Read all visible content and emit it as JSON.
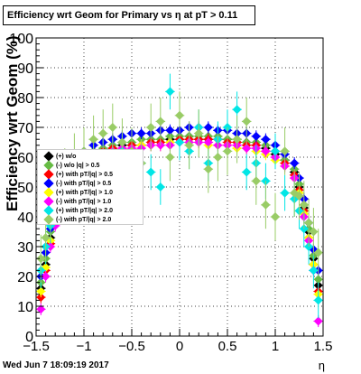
{
  "title": "Efficiency wrt Geom for Primary vs   η at pT > 0.11",
  "ylabel": "Efficiency wrt Geom (%)",
  "xlabel": "η",
  "datestamp": "Wed Jun  7 18:09:19 2017",
  "legend": [
    {
      "label": "(+) w/o",
      "color": "#000000"
    },
    {
      "label": "(-) w/o |q| > 0.5",
      "color": "#66bb44"
    },
    {
      "label": "(+) with pT/|q| > 0.5",
      "color": "#ff0000"
    },
    {
      "label": "(-) with pT/|q| > 0.5",
      "color": "#0000ff"
    },
    {
      "label": "(+) with pT/|q| > 1.0",
      "color": "#ffff00"
    },
    {
      "label": "(-) with pT/|q| > 1.0",
      "color": "#ff00ff"
    },
    {
      "label": "(+) with pT/|q| > 2.0",
      "color": "#00e6e6"
    },
    {
      "label": "(-) with pT/|q| > 2.0",
      "color": "#99cc66"
    }
  ],
  "chart_data": {
    "type": "scatter",
    "title": "Efficiency wrt Geom for Primary vs   η at pT > 0.11",
    "xlabel": "η",
    "ylabel": "Efficiency wrt Geom (%)",
    "xlim": [
      -1.5,
      1.5
    ],
    "ylim": [
      0,
      100
    ],
    "xticks": [
      -1.5,
      -1,
      -0.5,
      0,
      0.5,
      1,
      1.5
    ],
    "xtick_labels": [
      "−1.5",
      "−1",
      "−0.5",
      "0",
      "0.5",
      "1",
      "1.5"
    ],
    "yticks": [
      0,
      10,
      20,
      30,
      40,
      50,
      60,
      70,
      80,
      90,
      100
    ],
    "grid": true,
    "legend_position": "left",
    "x": [
      -1.45,
      -1.4,
      -1.35,
      -1.3,
      -1.25,
      -1.2,
      -1.1,
      -1.0,
      -0.9,
      -0.8,
      -0.7,
      -0.6,
      -0.5,
      -0.4,
      -0.3,
      -0.2,
      -0.1,
      0.0,
      0.1,
      0.2,
      0.3,
      0.4,
      0.5,
      0.6,
      0.7,
      0.8,
      0.9,
      1.0,
      1.1,
      1.2,
      1.25,
      1.3,
      1.35,
      1.4,
      1.45
    ],
    "series": [
      {
        "name": "(+) w/o",
        "color": "#000000",
        "error": 2,
        "values": [
          16,
          24,
          33,
          40,
          44,
          50,
          56,
          59,
          61,
          62,
          63,
          64,
          64,
          64,
          65,
          65,
          66,
          66,
          67,
          66,
          66,
          66,
          66,
          65,
          65,
          64,
          63,
          61,
          59,
          55,
          50,
          43,
          35,
          26,
          17
        ]
      },
      {
        "name": "(-) w/o |q| > 0.5",
        "color": "#66bb44",
        "error": 2,
        "values": [
          18,
          26,
          35,
          41,
          46,
          51,
          57,
          60,
          62,
          63,
          64,
          65,
          65,
          66,
          66,
          66,
          67,
          67,
          67,
          67,
          67,
          67,
          66,
          66,
          65,
          65,
          64,
          62,
          59,
          56,
          51,
          44,
          36,
          27,
          19
        ]
      },
      {
        "name": "(+) with pT/|q| > 0.5",
        "color": "#ff0000",
        "error": 2,
        "values": [
          13,
          22,
          31,
          39,
          43,
          49,
          56,
          59,
          61,
          62,
          63,
          63,
          64,
          64,
          65,
          65,
          65,
          66,
          66,
          66,
          66,
          66,
          65,
          65,
          64,
          64,
          62,
          60,
          58,
          54,
          49,
          42,
          33,
          24,
          15
        ]
      },
      {
        "name": "(-) with pT/|q| > 0.5",
        "color": "#0000ff",
        "error": 2,
        "values": [
          20,
          28,
          36,
          43,
          47,
          53,
          58,
          62,
          64,
          65,
          66,
          67,
          68,
          68,
          68,
          69,
          69,
          69,
          70,
          70,
          70,
          69,
          69,
          68,
          68,
          67,
          66,
          64,
          61,
          58,
          53,
          46,
          38,
          29,
          22
        ]
      },
      {
        "name": "(+) with pT/|q| > 1.0",
        "color": "#ffff00",
        "error": 2,
        "values": [
          15,
          23,
          32,
          39,
          44,
          50,
          55,
          58,
          60,
          61,
          62,
          63,
          63,
          64,
          64,
          64,
          65,
          65,
          65,
          65,
          64,
          64,
          64,
          63,
          63,
          62,
          61,
          59,
          57,
          53,
          48,
          41,
          33,
          24,
          14
        ]
      },
      {
        "name": "(-) with pT/|q| > 1.0",
        "color": "#ff00ff",
        "error": 2,
        "values": [
          9,
          20,
          30,
          37,
          42,
          48,
          54,
          58,
          60,
          61,
          62,
          63,
          63,
          63,
          64,
          64,
          64,
          65,
          65,
          65,
          65,
          64,
          64,
          64,
          63,
          63,
          62,
          60,
          57,
          53,
          47,
          40,
          32,
          22,
          5
        ]
      },
      {
        "name": "(+) with pT/|q| > 2.0",
        "color": "#00e6e6",
        "error": 6,
        "values": [
          22,
          30,
          37,
          44,
          47,
          53,
          55,
          57,
          58,
          60,
          61,
          62,
          60,
          58,
          55,
          50,
          82,
          65,
          62,
          70,
          58,
          66,
          70,
          76,
          55,
          58,
          52,
          62,
          48,
          46,
          42,
          36,
          30,
          22,
          12
        ]
      },
      {
        "name": "(-) with pT/|q| > 2.0",
        "color": "#99cc66",
        "error": 8,
        "values": [
          26,
          33,
          41,
          47,
          50,
          55,
          60,
          62,
          66,
          68,
          70,
          65,
          62,
          58,
          70,
          72,
          60,
          74,
          64,
          68,
          56,
          60,
          62,
          66,
          72,
          52,
          44,
          40,
          62,
          48,
          47,
          44,
          38,
          35,
          28
        ]
      }
    ]
  }
}
